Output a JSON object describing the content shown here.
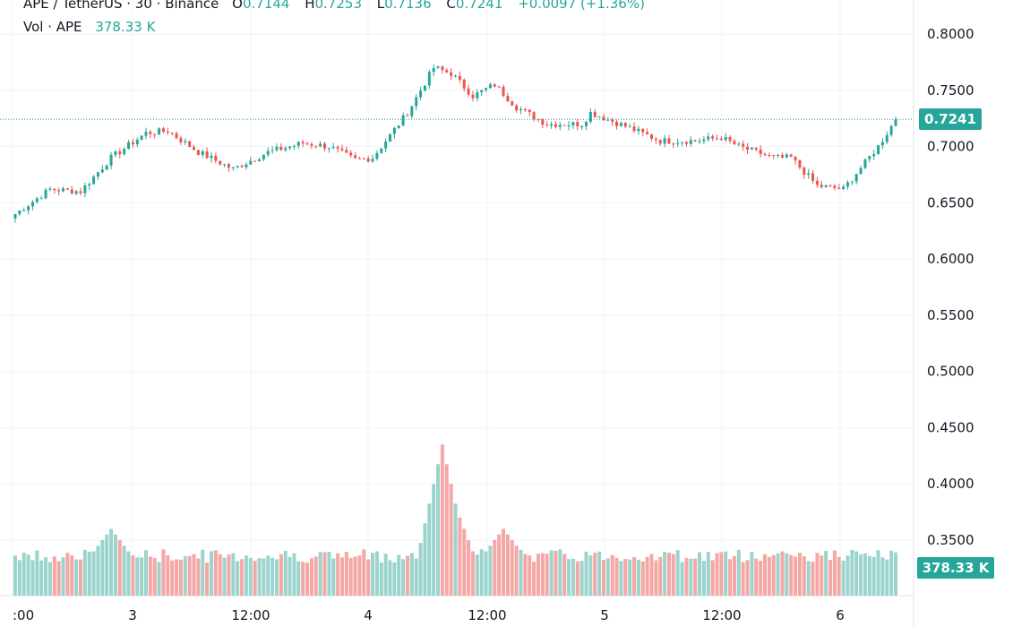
{
  "legend": {
    "symbol": "APE / TetherUS · 30 · Binance",
    "open_label": "O",
    "open": "0.7144",
    "high_label": "H",
    "high": "0.7253",
    "low_label": "L",
    "low": "0.7136",
    "close_label": "C",
    "close": "0.7241",
    "change": "+0.0097 (+1.36%)",
    "vol_label": "Vol · APE",
    "vol_value": "378.33 K"
  },
  "last_price_badge": "0.7241",
  "volume_badge": "378.33 K",
  "colors": {
    "up": "#26a69a",
    "down": "#ef5350",
    "up_vol": "#9ad4cd",
    "down_vol": "#f5a7a5",
    "grid": "#f0f3fa"
  },
  "chart_data": {
    "type": "candlestick",
    "y_axis_ticks": [
      "0.8000",
      "0.7500",
      "0.7000",
      "0.6500",
      "0.6000",
      "0.5500",
      "0.5000",
      "0.4500",
      "0.4000",
      "0.3500"
    ],
    "x_axis_ticks": [
      ":00",
      "3",
      "12:00",
      "4",
      "12:00",
      "5",
      "12:00",
      "6"
    ],
    "ylim": [
      0.3125,
      0.8167
    ],
    "last_price": 0.7241,
    "close_path": [
      [
        0,
        0.64
      ],
      [
        8,
        0.662
      ],
      [
        15,
        0.66
      ],
      [
        22,
        0.69
      ],
      [
        30,
        0.712
      ],
      [
        35,
        0.714
      ],
      [
        42,
        0.695
      ],
      [
        50,
        0.68
      ],
      [
        58,
        0.695
      ],
      [
        66,
        0.703
      ],
      [
        72,
        0.7
      ],
      [
        78,
        0.688
      ],
      [
        82,
        0.69
      ],
      [
        90,
        0.73
      ],
      [
        96,
        0.77
      ],
      [
        100,
        0.765
      ],
      [
        105,
        0.745
      ],
      [
        110,
        0.755
      ],
      [
        115,
        0.735
      ],
      [
        122,
        0.72
      ],
      [
        130,
        0.72
      ],
      [
        132,
        0.73
      ],
      [
        140,
        0.718
      ],
      [
        148,
        0.705
      ],
      [
        156,
        0.705
      ],
      [
        162,
        0.708
      ],
      [
        166,
        0.7
      ],
      [
        174,
        0.69
      ],
      [
        178,
        0.69
      ],
      [
        184,
        0.665
      ],
      [
        190,
        0.662
      ],
      [
        198,
        0.7
      ],
      [
        202,
        0.7241
      ]
    ],
    "volume_peaks": [
      [
        18,
        0.32
      ],
      [
        22,
        0.36
      ],
      [
        98,
        0.435
      ],
      [
        100,
        0.39
      ],
      [
        112,
        0.36
      ],
      [
        176,
        0.34
      ]
    ]
  }
}
